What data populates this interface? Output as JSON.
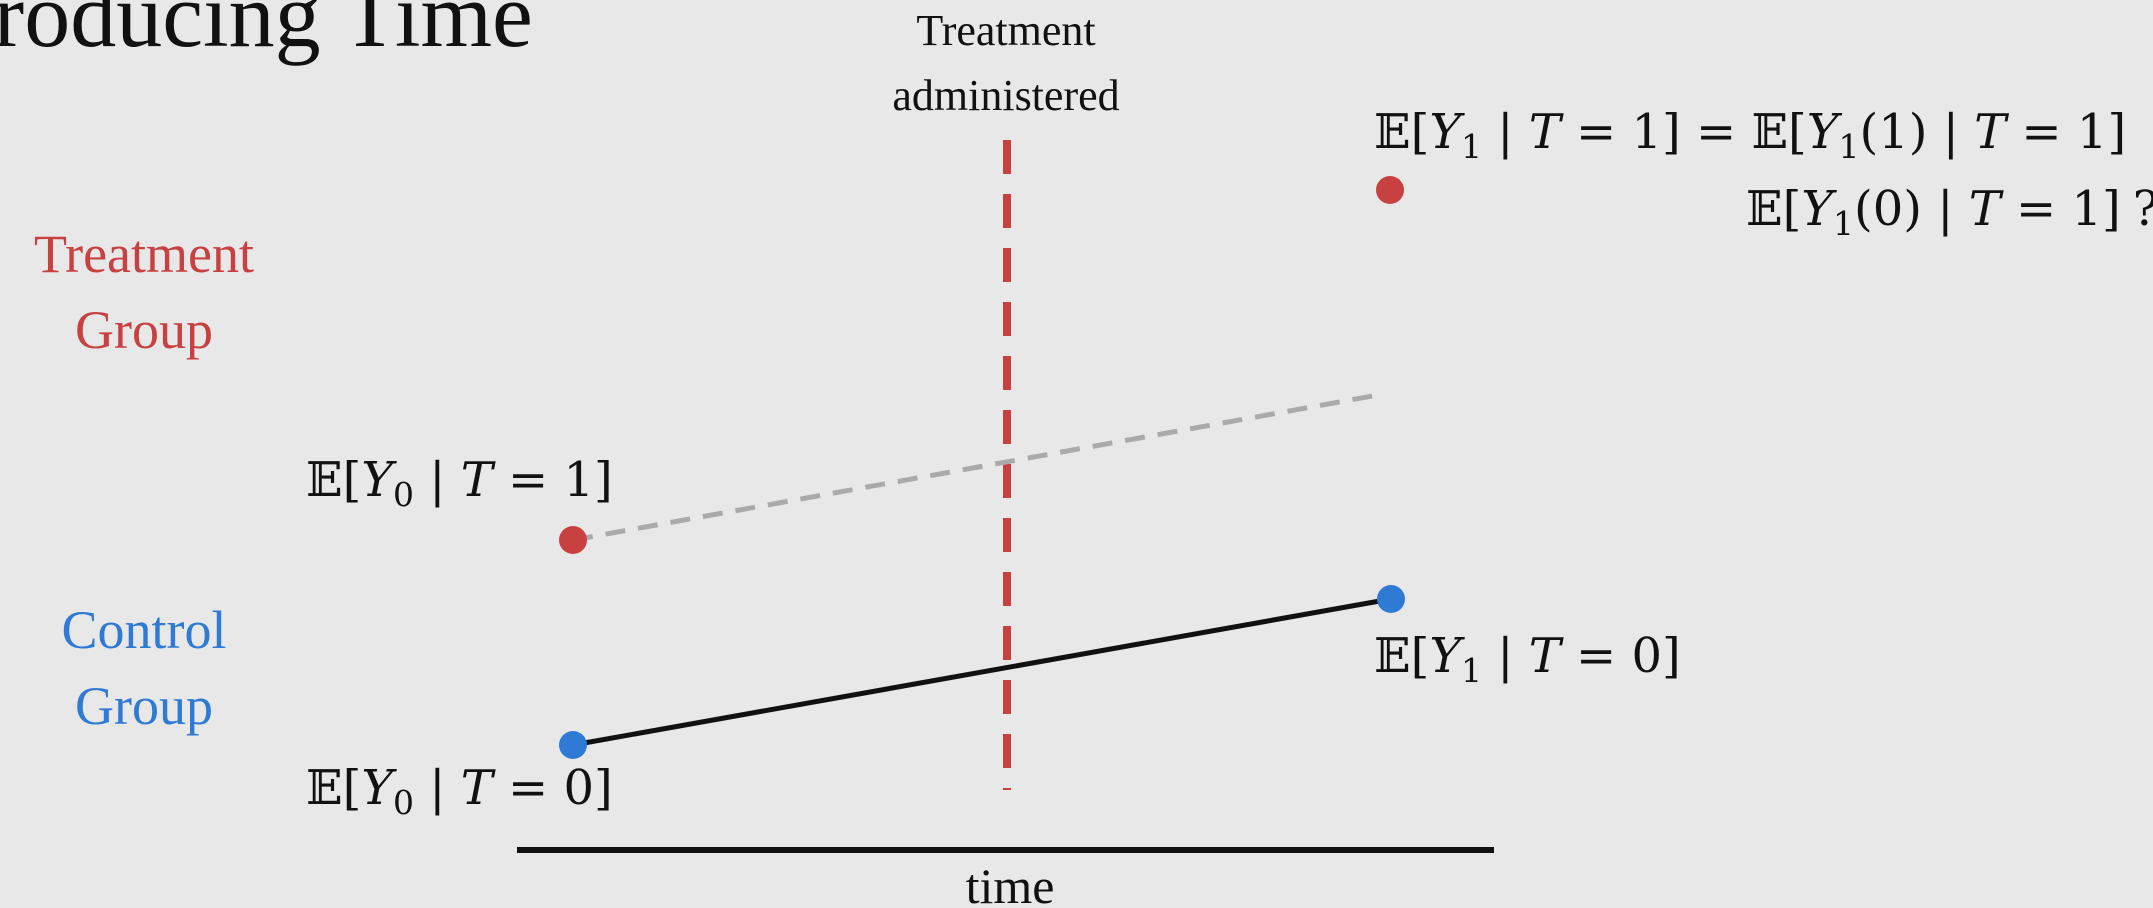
{
  "slide": {
    "title": "troducing Time"
  },
  "labels": {
    "treatment_line1": "Treatment",
    "treatment_line2": "administered",
    "treatment_group_line1": "Treatment",
    "treatment_group_line2": "Group",
    "control_group_line1": "Control",
    "control_group_line2": "Group",
    "time_axis": "time"
  },
  "math": {
    "y0_t1": {
      "e": "𝔼",
      "open": "[",
      "y": "Y",
      "sub": "0",
      "cond": " | ",
      "t": "T",
      "rest": " = 1]"
    },
    "y0_t0": {
      "e": "𝔼",
      "open": "[",
      "y": "Y",
      "sub": "0",
      "cond": " | ",
      "t": "T",
      "rest": " = 0]"
    },
    "y1_t0": {
      "e": "𝔼",
      "open": "[",
      "y": "Y",
      "sub": "1",
      "cond": " | ",
      "t": "T",
      "rest": " = 0]"
    },
    "y1_t1_eq": {
      "e": "𝔼",
      "open": "[",
      "y": "Y",
      "sub": "1",
      "cond": " | ",
      "t": "T",
      "mid": " = 1] = ",
      "e2": "𝔼",
      "open2": "[",
      "y2": "Y",
      "sub2": "1",
      "arg2": "(1) | ",
      "t2": "T",
      "rest": " = 1]"
    },
    "counterfactual": {
      "e": "𝔼",
      "open": "[",
      "y": "Y",
      "sub": "1",
      "arg": "(0) | ",
      "t": "T",
      "rest": " = 1]",
      "q": "?"
    }
  },
  "colors": {
    "treatment": "#c94040",
    "control": "#2f7ad4",
    "counterfactual_line": "#aaaaaa",
    "text": "#111111",
    "background": "#e8e8e8"
  }
}
